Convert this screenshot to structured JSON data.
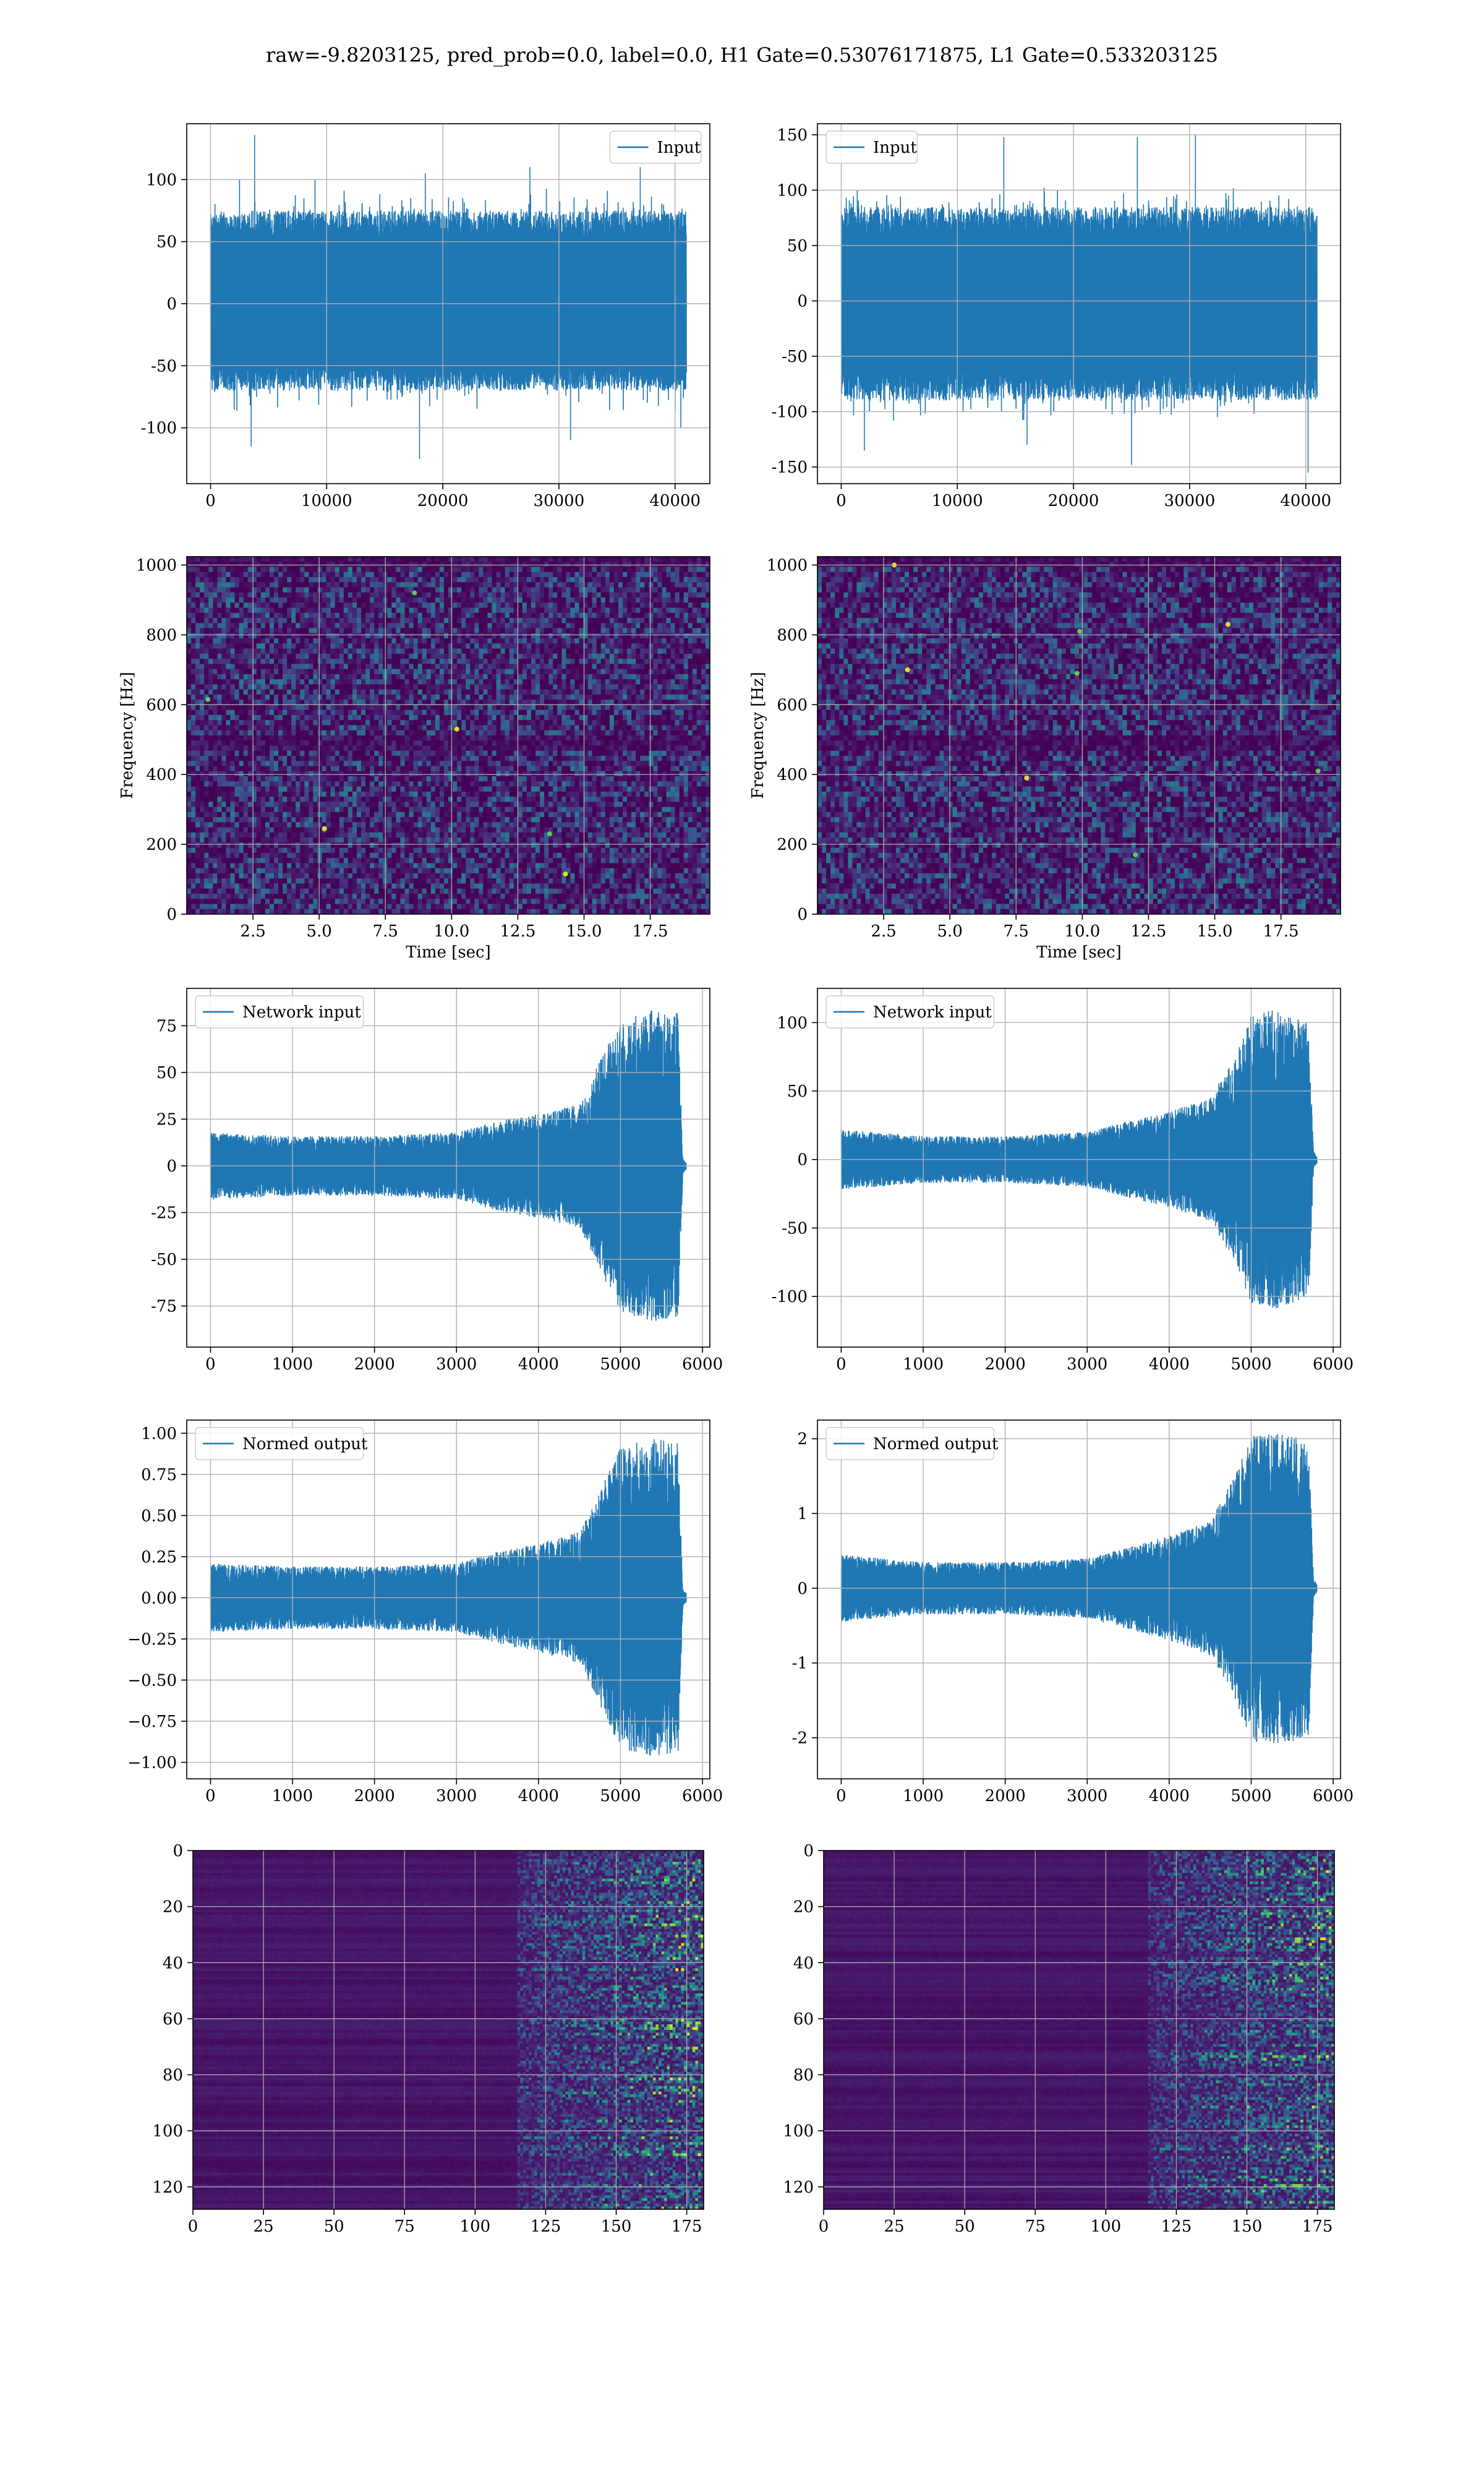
{
  "suptitle": "raw=-9.8203125, pred_prob=0.0, label=0.0, H1 Gate=0.53076171875, L1 Gate=0.533203125",
  "colors": {
    "series": "#1f77b4",
    "grid": "#b0b0b0",
    "viridis_low": "#440154",
    "viridis_mid": "#21918c",
    "viridis_high": "#fde725"
  },
  "chart_data": [
    {
      "id": "input-h1",
      "type": "line",
      "column": "left",
      "row": 1,
      "legend": [
        "Input"
      ],
      "legend_loc": "upper right",
      "xlim": [
        -2048,
        42996
      ],
      "ylim": [
        -145,
        145
      ],
      "xticks": [
        0,
        10000,
        20000,
        30000,
        40000
      ],
      "yticks": [
        -100,
        -50,
        0,
        50,
        100
      ],
      "series": [
        {
          "name": "Input",
          "length": 40960,
          "body_amplitude": [
            -70,
            75
          ],
          "peaks": [
            {
              "x": 2500,
              "y": 100
            },
            {
              "x": 3800,
              "y": 136
            },
            {
              "x": 9000,
              "y": 100
            },
            {
              "x": 18500,
              "y": 105
            },
            {
              "x": 27500,
              "y": 110
            },
            {
              "x": 37000,
              "y": 110
            },
            {
              "x": 3500,
              "y": -115
            },
            {
              "x": 18000,
              "y": -125
            },
            {
              "x": 31000,
              "y": -110
            },
            {
              "x": 40500,
              "y": -100
            }
          ]
        }
      ]
    },
    {
      "id": "input-l1",
      "type": "line",
      "column": "right",
      "row": 1,
      "legend": [
        "Input"
      ],
      "legend_loc": "upper left",
      "xlim": [
        -2048,
        42996
      ],
      "ylim": [
        -165,
        160
      ],
      "xticks": [
        0,
        10000,
        20000,
        30000,
        40000
      ],
      "yticks": [
        -150,
        -100,
        -50,
        0,
        50,
        100,
        150
      ],
      "series": [
        {
          "name": "Input",
          "length": 40960,
          "body_amplitude": [
            -90,
            85
          ],
          "peaks": [
            {
              "x": 14000,
              "y": 148
            },
            {
              "x": 25500,
              "y": 148
            },
            {
              "x": 30500,
              "y": 150
            },
            {
              "x": 2000,
              "y": -135
            },
            {
              "x": 25000,
              "y": -148
            },
            {
              "x": 40200,
              "y": -155
            },
            {
              "x": 16000,
              "y": -130
            }
          ]
        }
      ]
    },
    {
      "id": "spectrogram-h1",
      "type": "heatmap",
      "column": "left",
      "row": 2,
      "xlabel": "Time [sec]",
      "ylabel": "Frequency [Hz]",
      "xlim": [
        0,
        19.75
      ],
      "ylim": [
        0,
        1024
      ],
      "xticks": [
        2.5,
        5.0,
        7.5,
        10.0,
        12.5,
        15.0,
        17.5
      ],
      "yticks": [
        0,
        200,
        400,
        600,
        800,
        1000
      ],
      "colormap": "viridis",
      "bright_spots": [
        {
          "t": 0.8,
          "f": 615
        },
        {
          "t": 5.2,
          "f": 245
        },
        {
          "t": 13.7,
          "f": 230
        },
        {
          "t": 14.3,
          "f": 115
        },
        {
          "t": 8.6,
          "f": 920
        },
        {
          "t": 10.2,
          "f": 530
        }
      ]
    },
    {
      "id": "spectrogram-l1",
      "type": "heatmap",
      "column": "right",
      "row": 2,
      "xlabel": "Time [sec]",
      "ylabel": "Frequency [Hz]",
      "xlim": [
        0,
        19.75
      ],
      "ylim": [
        0,
        1024
      ],
      "xticks": [
        2.5,
        5.0,
        7.5,
        10.0,
        12.5,
        15.0,
        17.5
      ],
      "yticks": [
        0,
        200,
        400,
        600,
        800,
        1000
      ],
      "colormap": "viridis",
      "bright_spots": [
        {
          "t": 9.9,
          "f": 810
        },
        {
          "t": 7.9,
          "f": 390
        },
        {
          "t": 9.8,
          "f": 690
        },
        {
          "t": 3.4,
          "f": 700
        },
        {
          "t": 18.9,
          "f": 410
        },
        {
          "t": 15.5,
          "f": 830
        },
        {
          "t": 12.0,
          "f": 170
        },
        {
          "t": 2.9,
          "f": 1000
        }
      ]
    },
    {
      "id": "network-input-h1",
      "type": "line",
      "column": "left",
      "row": 3,
      "legend": [
        "Network input"
      ],
      "legend_loc": "upper left",
      "xlim": [
        -290,
        6090
      ],
      "ylim": [
        -97,
        95
      ],
      "xticks": [
        0,
        1000,
        2000,
        3000,
        4000,
        5000,
        6000
      ],
      "yticks": [
        -75,
        -50,
        -25,
        0,
        25,
        50,
        75
      ],
      "series": [
        {
          "name": "Network input",
          "x_end": 5800,
          "envelope": [
            {
              "x": 0,
              "a": 18
            },
            {
              "x": 1000,
              "a": 16
            },
            {
              "x": 2000,
              "a": 16
            },
            {
              "x": 3000,
              "a": 18
            },
            {
              "x": 3500,
              "a": 24
            },
            {
              "x": 4000,
              "a": 28
            },
            {
              "x": 4500,
              "a": 33
            },
            {
              "x": 4700,
              "a": 52
            },
            {
              "x": 5000,
              "a": 78
            },
            {
              "x": 5400,
              "a": 84
            },
            {
              "x": 5700,
              "a": 82
            },
            {
              "x": 5760,
              "a": 4
            },
            {
              "x": 5800,
              "a": 2
            }
          ]
        }
      ]
    },
    {
      "id": "network-input-l1",
      "type": "line",
      "column": "right",
      "row": 3,
      "legend": [
        "Network input"
      ],
      "legend_loc": "upper left",
      "xlim": [
        -290,
        6090
      ],
      "ylim": [
        -137,
        125
      ],
      "xticks": [
        0,
        1000,
        2000,
        3000,
        4000,
        5000,
        6000
      ],
      "yticks": [
        -100,
        -50,
        0,
        50,
        100
      ],
      "series": [
        {
          "name": "Network input",
          "x_end": 5800,
          "envelope": [
            {
              "x": 0,
              "a": 22
            },
            {
              "x": 1000,
              "a": 17
            },
            {
              "x": 2000,
              "a": 17
            },
            {
              "x": 3000,
              "a": 20
            },
            {
              "x": 3500,
              "a": 28
            },
            {
              "x": 4000,
              "a": 35
            },
            {
              "x": 4500,
              "a": 45
            },
            {
              "x": 4800,
              "a": 75
            },
            {
              "x": 5000,
              "a": 105
            },
            {
              "x": 5300,
              "a": 110
            },
            {
              "x": 5700,
              "a": 100
            },
            {
              "x": 5760,
              "a": 6
            },
            {
              "x": 5800,
              "a": 3
            }
          ]
        }
      ]
    },
    {
      "id": "normed-output-h1",
      "type": "line",
      "column": "left",
      "row": 4,
      "legend": [
        "Normed output"
      ],
      "legend_loc": "upper left",
      "xlim": [
        -290,
        6090
      ],
      "ylim": [
        -1.1,
        1.08
      ],
      "xticks": [
        0,
        1000,
        2000,
        3000,
        4000,
        5000,
        6000
      ],
      "yticks": [
        -1.0,
        -0.75,
        -0.5,
        -0.25,
        0.0,
        0.25,
        0.5,
        0.75,
        1.0
      ],
      "series": [
        {
          "name": "Normed output",
          "x_end": 5800,
          "envelope": [
            {
              "x": 0,
              "a": 0.21
            },
            {
              "x": 1000,
              "a": 0.19
            },
            {
              "x": 2000,
              "a": 0.19
            },
            {
              "x": 3000,
              "a": 0.21
            },
            {
              "x": 3500,
              "a": 0.28
            },
            {
              "x": 4000,
              "a": 0.33
            },
            {
              "x": 4500,
              "a": 0.4
            },
            {
              "x": 4700,
              "a": 0.6
            },
            {
              "x": 5000,
              "a": 0.92
            },
            {
              "x": 5400,
              "a": 0.97
            },
            {
              "x": 5700,
              "a": 0.95
            },
            {
              "x": 5760,
              "a": 0.05
            },
            {
              "x": 5800,
              "a": 0.03
            }
          ]
        }
      ]
    },
    {
      "id": "normed-output-l1",
      "type": "line",
      "column": "right",
      "row": 4,
      "legend": [
        "Normed output"
      ],
      "legend_loc": "upper left",
      "xlim": [
        -290,
        6090
      ],
      "ylim": [
        -2.55,
        2.25
      ],
      "xticks": [
        0,
        1000,
        2000,
        3000,
        4000,
        5000,
        6000
      ],
      "yticks": [
        -2,
        -1,
        0,
        1,
        2
      ],
      "series": [
        {
          "name": "Normed output",
          "x_end": 5800,
          "envelope": [
            {
              "x": 0,
              "a": 0.45
            },
            {
              "x": 1000,
              "a": 0.35
            },
            {
              "x": 2000,
              "a": 0.35
            },
            {
              "x": 3000,
              "a": 0.4
            },
            {
              "x": 3500,
              "a": 0.55
            },
            {
              "x": 4000,
              "a": 0.7
            },
            {
              "x": 4500,
              "a": 0.9
            },
            {
              "x": 4800,
              "a": 1.5
            },
            {
              "x": 5000,
              "a": 2.05
            },
            {
              "x": 5300,
              "a": 2.1
            },
            {
              "x": 5700,
              "a": 2.0
            },
            {
              "x": 5760,
              "a": 0.12
            },
            {
              "x": 5800,
              "a": 0.06
            }
          ]
        }
      ]
    },
    {
      "id": "feature-map-h1",
      "type": "heatmap",
      "column": "left",
      "row": 5,
      "xlim": [
        0,
        181
      ],
      "ylim": [
        128,
        0
      ],
      "xticks": [
        0,
        25,
        50,
        75,
        100,
        125,
        150,
        175
      ],
      "yticks": [
        0,
        20,
        40,
        60,
        80,
        100,
        120
      ],
      "colormap": "viridis",
      "activity_onset": 115
    },
    {
      "id": "feature-map-l1",
      "type": "heatmap",
      "column": "right",
      "row": 5,
      "xlim": [
        0,
        181
      ],
      "ylim": [
        128,
        0
      ],
      "xticks": [
        0,
        25,
        50,
        75,
        100,
        125,
        150,
        175
      ],
      "yticks": [
        0,
        20,
        40,
        60,
        80,
        100,
        120
      ],
      "colormap": "viridis",
      "activity_onset": 115
    }
  ]
}
